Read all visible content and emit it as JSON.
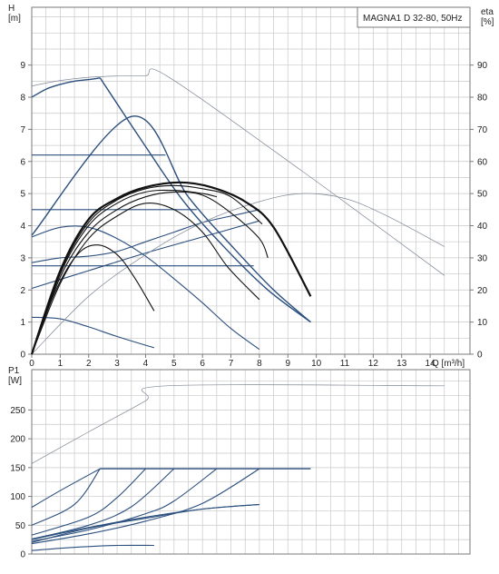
{
  "title_box": "MAGNA1 D 32-80, 50Hz",
  "colors": {
    "grid": "#c8c8c8",
    "frame": "#7a7a7a",
    "blue": "#2b4f7e",
    "black": "#111111",
    "thin": "#7f8896"
  },
  "chart_data": [
    {
      "type": "line",
      "panel": "top",
      "y_label_lines": [
        "H",
        "[m]"
      ],
      "y2_label_lines": [
        "eta",
        "[%]"
      ],
      "xlabel": "Q [m³/h]",
      "xlim": [
        0,
        15.4
      ],
      "ylim": [
        0,
        10.8
      ],
      "y2lim": [
        0,
        108
      ],
      "x_ticks": [
        0,
        1,
        2,
        3,
        4,
        5,
        6,
        7,
        8,
        9,
        10,
        11,
        12,
        13,
        14
      ],
      "y_ticks": [
        0,
        1,
        2,
        3,
        4,
        5,
        6,
        7,
        8,
        9
      ],
      "y2_ticks": [
        0,
        10,
        20,
        30,
        40,
        50,
        60,
        70,
        80,
        90
      ],
      "grid": true,
      "series": [
        {
          "role": "H-max-curve",
          "color": "blue",
          "width": 1.4,
          "points": [
            [
              0,
              8.0
            ],
            [
              0.5,
              8.25
            ],
            [
              1,
              8.4
            ],
            [
              1.5,
              8.5
            ],
            [
              2,
              8.55
            ],
            [
              2.4,
              8.6
            ]
          ]
        },
        {
          "role": "H-prop-upper",
          "color": "blue",
          "width": 1.4,
          "points": [
            [
              2.4,
              8.6
            ],
            [
              3.9,
              6.6
            ],
            [
              5.3,
              4.8
            ],
            [
              6.8,
              3.3
            ],
            [
              8.3,
              2.0
            ],
            [
              9.8,
              1.0
            ]
          ]
        },
        {
          "role": "H-prop-lower",
          "color": "blue",
          "width": 1.4,
          "points": [
            [
              0,
              3.7
            ],
            [
              3.5,
              7.4
            ],
            [
              5.5,
              4.9
            ],
            [
              7.1,
              3.3
            ],
            [
              8.5,
              2.0
            ],
            [
              9.8,
              1.0
            ]
          ]
        },
        {
          "role": "H-const-6.2",
          "color": "blue",
          "width": 1.1,
          "points": [
            [
              0,
              6.2
            ],
            [
              4.7,
              6.2
            ]
          ]
        },
        {
          "role": "H-const-4.5",
          "color": "blue",
          "width": 1.1,
          "points": [
            [
              0,
              4.5
            ],
            [
              5.8,
              4.5
            ]
          ]
        },
        {
          "role": "H-const-2.75",
          "color": "blue",
          "width": 1.1,
          "points": [
            [
              0,
              2.75
            ],
            [
              7.8,
              2.75
            ]
          ]
        },
        {
          "role": "H-speed-a",
          "color": "blue",
          "width": 1.1,
          "points": [
            [
              0,
              1.15
            ],
            [
              1,
              1.1
            ],
            [
              2,
              0.85
            ],
            [
              3,
              0.55
            ],
            [
              4.3,
              0.2
            ]
          ]
        },
        {
          "role": "H-speed-b",
          "color": "blue",
          "width": 1.1,
          "points": [
            [
              0,
              3.65
            ],
            [
              1,
              3.95
            ],
            [
              2,
              3.95
            ],
            [
              3,
              3.6
            ],
            [
              4,
              3.05
            ],
            [
              5,
              2.35
            ],
            [
              6,
              1.6
            ],
            [
              7,
              0.8
            ],
            [
              8,
              0.15
            ]
          ]
        },
        {
          "role": "H-speed-c",
          "color": "blue",
          "width": 1.1,
          "points": [
            [
              0,
              2.85
            ],
            [
              1,
              3.0
            ],
            [
              2,
              3.05
            ],
            [
              3,
              3.2
            ],
            [
              4,
              3.5
            ],
            [
              5,
              3.8
            ],
            [
              6,
              4.1
            ],
            [
              7,
              4.3
            ],
            [
              8,
              4.5
            ]
          ]
        },
        {
          "role": "H-prop-line-d",
          "color": "blue",
          "width": 1.1,
          "points": [
            [
              0,
              2.05
            ],
            [
              2,
              2.6
            ],
            [
              4,
              3.15
            ],
            [
              6,
              3.65
            ],
            [
              8,
              4.15
            ]
          ]
        },
        {
          "role": "eta-max-thin",
          "color": "thin",
          "width": 0.7,
          "points": [
            [
              0,
              83.5
            ],
            [
              1,
              85.2
            ],
            [
              2,
              86.2
            ],
            [
              3,
              86.6
            ],
            [
              4,
              86.7
            ],
            [
              4.75,
              86.6
            ],
            [
              9.5,
              57
            ],
            [
              14.5,
              24.5
            ]
          ]
        },
        {
          "role": "eta-thin-curve",
          "color": "thin",
          "width": 0.7,
          "points": [
            [
              0,
              0
            ],
            [
              2,
              18
            ],
            [
              4,
              31
            ],
            [
              6,
              41
            ],
            [
              8,
              47.5
            ],
            [
              9.5,
              50
            ],
            [
              11,
              48.5
            ],
            [
              12.5,
              43
            ],
            [
              14.5,
              33.5
            ]
          ]
        },
        {
          "role": "eta-1",
          "color": "black",
          "width": 1.1,
          "points": [
            [
              0,
              0
            ],
            [
              0.8,
              19
            ],
            [
              1.6,
              31
            ],
            [
              2.3,
              34
            ],
            [
              3,
              31
            ],
            [
              3.6,
              24
            ],
            [
              4.3,
              13.5
            ]
          ]
        },
        {
          "role": "eta-2",
          "color": "black",
          "width": 1.1,
          "points": [
            [
              0,
              0
            ],
            [
              1,
              22
            ],
            [
              2,
              36
            ],
            [
              3,
              43
            ],
            [
              4,
              47
            ],
            [
              5,
              45
            ],
            [
              6,
              38
            ],
            [
              6.9,
              27
            ],
            [
              8,
              17
            ]
          ]
        },
        {
          "role": "eta-3",
          "color": "black",
          "width": 1.1,
          "points": [
            [
              0,
              0
            ],
            [
              1,
              24
            ],
            [
              2,
              38
            ],
            [
              3,
              45
            ],
            [
              4,
              49
            ],
            [
              5,
              50.5
            ],
            [
              6,
              49.5
            ],
            [
              7,
              44
            ],
            [
              8,
              36
            ],
            [
              8.3,
              30
            ]
          ]
        },
        {
          "role": "eta-4",
          "color": "black",
          "width": 1.1,
          "points": [
            [
              0,
              0
            ],
            [
              1,
              25
            ],
            [
              2,
              40
            ],
            [
              3,
              47
            ],
            [
              4,
              50.5
            ],
            [
              5,
              51
            ],
            [
              6,
              50
            ],
            [
              6.5,
              49
            ]
          ]
        },
        {
          "role": "eta-5",
          "color": "black",
          "width": 1.1,
          "points": [
            [
              0,
              0
            ],
            [
              1,
              25.5
            ],
            [
              2,
              41
            ],
            [
              3,
              48
            ],
            [
              4,
              51.5
            ],
            [
              5,
              52.5
            ],
            [
              6,
              51.5
            ],
            [
              7,
              49
            ],
            [
              8.1,
              40.5
            ]
          ]
        },
        {
          "role": "eta-6-bold",
          "color": "black",
          "width": 2.2,
          "points": [
            [
              0,
              0
            ],
            [
              1,
              26
            ],
            [
              2,
              42
            ],
            [
              3,
              48.5
            ],
            [
              4,
              52
            ],
            [
              5.2,
              53.5
            ],
            [
              6.3,
              52
            ],
            [
              7.5,
              47.5
            ],
            [
              8.5,
              39.5
            ],
            [
              9.8,
              18
            ]
          ]
        }
      ]
    },
    {
      "type": "line",
      "panel": "bottom",
      "y_label_lines": [
        "P1",
        "[W]"
      ],
      "xlim": [
        0,
        15.4
      ],
      "ylim": [
        0,
        320
      ],
      "y_ticks": [
        0,
        50,
        100,
        150,
        200,
        250
      ],
      "grid": true,
      "series": [
        {
          "role": "P1-max-thin",
          "color": "thin",
          "width": 0.7,
          "points": [
            [
              0,
              157
            ],
            [
              2,
              212
            ],
            [
              4,
              266
            ],
            [
              4.75,
              292
            ],
            [
              14.5,
              292
            ]
          ]
        },
        {
          "role": "P1-limit",
          "color": "blue",
          "width": 1.4,
          "points": [
            [
              2.4,
              148
            ],
            [
              9.8,
              148
            ]
          ]
        },
        {
          "role": "P1-a",
          "color": "blue",
          "width": 1.1,
          "points": [
            [
              0,
              6
            ],
            [
              1,
              10
            ],
            [
              2,
              13
            ],
            [
              3,
              15
            ],
            [
              4.3,
              15
            ]
          ]
        },
        {
          "role": "P1-b",
          "color": "blue",
          "width": 1.1,
          "points": [
            [
              0,
              25
            ],
            [
              2,
              46
            ],
            [
              4,
              64
            ],
            [
              6,
              78
            ],
            [
              8,
              86
            ]
          ]
        },
        {
          "role": "P1-c",
          "color": "blue",
          "width": 1.1,
          "points": [
            [
              0,
              18
            ],
            [
              2,
              35
            ],
            [
              4,
              57
            ],
            [
              6,
              88
            ],
            [
              8,
              148
            ]
          ]
        },
        {
          "role": "P1-d",
          "color": "blue",
          "width": 1.1,
          "points": [
            [
              0,
              22
            ],
            [
              2,
              42
            ],
            [
              4,
              70
            ],
            [
              5,
              92
            ],
            [
              6.5,
              148
            ]
          ]
        },
        {
          "role": "P1-e",
          "color": "blue",
          "width": 1.1,
          "points": [
            [
              0,
              26
            ],
            [
              2,
              50
            ],
            [
              3.5,
              82
            ],
            [
              5,
              148
            ]
          ]
        },
        {
          "role": "P1-f",
          "color": "blue",
          "width": 1.1,
          "points": [
            [
              0,
              33
            ],
            [
              2,
              64
            ],
            [
              3,
              98
            ],
            [
              4,
              148
            ]
          ]
        },
        {
          "role": "P1-g",
          "color": "blue",
          "width": 1.1,
          "points": [
            [
              0,
              50
            ],
            [
              1.5,
              86
            ],
            [
              2.4,
              148
            ]
          ]
        },
        {
          "role": "P1-h",
          "color": "blue",
          "width": 1.1,
          "points": [
            [
              0,
              81
            ],
            [
              1,
              110
            ],
            [
              2.4,
              148
            ]
          ]
        },
        {
          "role": "P1-prop",
          "color": "blue",
          "width": 1.1,
          "points": [
            [
              0,
              20
            ],
            [
              2,
              45
            ],
            [
              4,
              62
            ],
            [
              6,
              78
            ],
            [
              8,
              86
            ]
          ]
        }
      ]
    }
  ]
}
